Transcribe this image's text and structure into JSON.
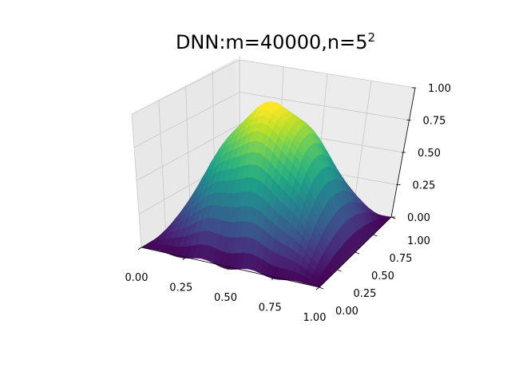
{
  "chart_data": {
    "type": "surface3d",
    "title": "DNN:m=40000,n=5",
    "title_exponent": "2",
    "xlabel": "",
    "ylabel": "",
    "zlabel": "",
    "x_ticks": [
      "0.00",
      "0.25",
      "0.50",
      "0.75",
      "1.00"
    ],
    "y_ticks": [
      "0.00",
      "0.25",
      "0.50",
      "0.75",
      "1.00"
    ],
    "z_ticks": [
      "0.00",
      "0.25",
      "0.50",
      "0.75",
      "1.00"
    ],
    "xlim": [
      0,
      1
    ],
    "ylim": [
      0,
      1
    ],
    "zlim": [
      0,
      1
    ],
    "surface_description": "smooth hump u(x,y)=sin(pi x) sin(pi y) peaking near 1.0 at (0.5,0.5), near 0 at edges",
    "peak_value": 1.0,
    "colormap": "viridis",
    "grid": true,
    "pane_color": "#f2f2f2",
    "grid_color": "#c8c8c8"
  }
}
